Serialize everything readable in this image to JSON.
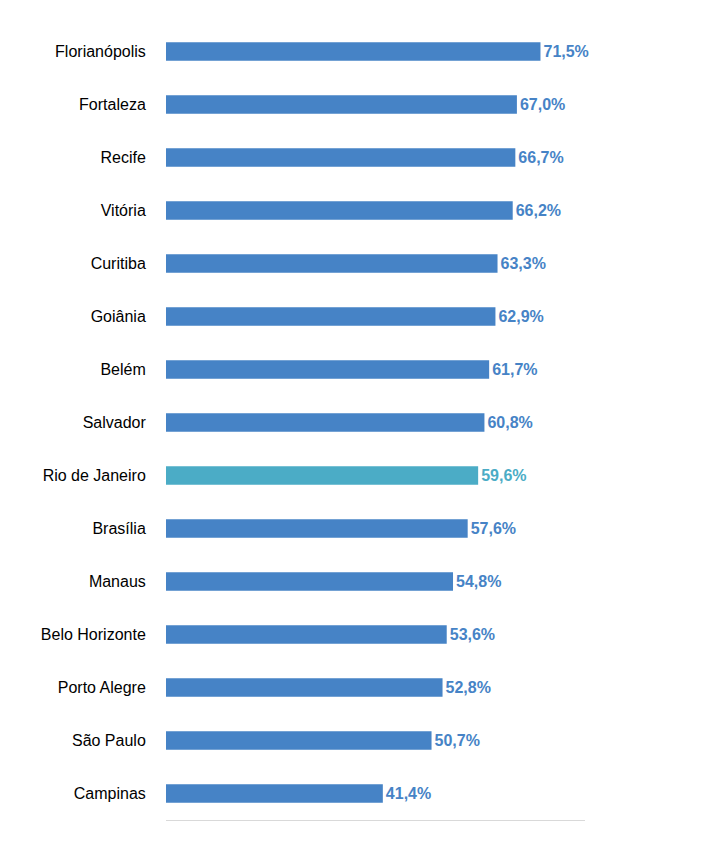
{
  "chart_data": {
    "type": "bar",
    "orientation": "horizontal",
    "categories": [
      "Florianópolis",
      "Fortaleza",
      "Recife",
      "Vitória",
      "Curitiba",
      "Goiânia",
      "Belém",
      "Salvador",
      "Rio de Janeiro",
      "Brasília",
      "Manaus",
      "Belo Horizonte",
      "Porto Alegre",
      "São Paulo",
      "Campinas"
    ],
    "values": [
      71.5,
      67.0,
      66.7,
      66.2,
      63.3,
      62.9,
      61.7,
      60.8,
      59.6,
      57.6,
      54.8,
      53.6,
      52.8,
      50.7,
      41.4
    ],
    "value_labels": [
      "71,5%",
      "67,0%",
      "66,7%",
      "66,2%",
      "63,3%",
      "62,9%",
      "61,7%",
      "60,8%",
      "59,6%",
      "57,6%",
      "54,8%",
      "53,6%",
      "52,8%",
      "50,7%",
      "41,4%"
    ],
    "colors": [
      "#4683c6",
      "#4683c6",
      "#4683c6",
      "#4683c6",
      "#4683c6",
      "#4683c6",
      "#4683c6",
      "#4683c6",
      "#4bacc6",
      "#4683c6",
      "#4683c6",
      "#4683c6",
      "#4683c6",
      "#4683c6",
      "#4683c6"
    ],
    "xlim": [
      0,
      80
    ],
    "data_labels": true,
    "tick_labels": "y",
    "grid": false
  }
}
